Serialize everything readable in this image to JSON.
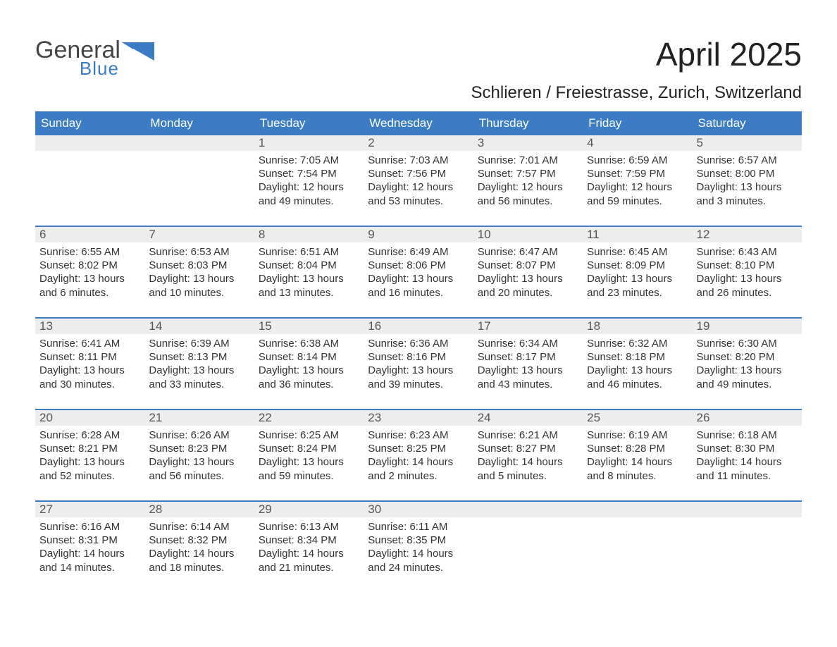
{
  "logo": {
    "line1": "General",
    "line2": "Blue",
    "shape_color": "#3c7cc4",
    "line1_color": "#444444",
    "line2_color": "#3c7cc4",
    "line1_fontsize": 34,
    "line2_fontsize": 26
  },
  "title": {
    "month": "April 2025",
    "location": "Schlieren / Freiestrasse, Zurich, Switzerland",
    "month_fontsize": 46,
    "location_fontsize": 24,
    "text_color": "#222222"
  },
  "calendar": {
    "header_bg": "#3c7cc4",
    "header_fg": "#ffffff",
    "daynum_bg": "#ededed",
    "row_border_color": "#3c7cc4",
    "body_text_color": "#333333",
    "columns": [
      "Sunday",
      "Monday",
      "Tuesday",
      "Wednesday",
      "Thursday",
      "Friday",
      "Saturday"
    ],
    "weeks": [
      [
        {
          "num": "",
          "sunrise": "",
          "sunset": "",
          "daylight1": "",
          "daylight2": ""
        },
        {
          "num": "",
          "sunrise": "",
          "sunset": "",
          "daylight1": "",
          "daylight2": ""
        },
        {
          "num": "1",
          "sunrise": "Sunrise: 7:05 AM",
          "sunset": "Sunset: 7:54 PM",
          "daylight1": "Daylight: 12 hours",
          "daylight2": "and 49 minutes."
        },
        {
          "num": "2",
          "sunrise": "Sunrise: 7:03 AM",
          "sunset": "Sunset: 7:56 PM",
          "daylight1": "Daylight: 12 hours",
          "daylight2": "and 53 minutes."
        },
        {
          "num": "3",
          "sunrise": "Sunrise: 7:01 AM",
          "sunset": "Sunset: 7:57 PM",
          "daylight1": "Daylight: 12 hours",
          "daylight2": "and 56 minutes."
        },
        {
          "num": "4",
          "sunrise": "Sunrise: 6:59 AM",
          "sunset": "Sunset: 7:59 PM",
          "daylight1": "Daylight: 12 hours",
          "daylight2": "and 59 minutes."
        },
        {
          "num": "5",
          "sunrise": "Sunrise: 6:57 AM",
          "sunset": "Sunset: 8:00 PM",
          "daylight1": "Daylight: 13 hours",
          "daylight2": "and 3 minutes."
        }
      ],
      [
        {
          "num": "6",
          "sunrise": "Sunrise: 6:55 AM",
          "sunset": "Sunset: 8:02 PM",
          "daylight1": "Daylight: 13 hours",
          "daylight2": "and 6 minutes."
        },
        {
          "num": "7",
          "sunrise": "Sunrise: 6:53 AM",
          "sunset": "Sunset: 8:03 PM",
          "daylight1": "Daylight: 13 hours",
          "daylight2": "and 10 minutes."
        },
        {
          "num": "8",
          "sunrise": "Sunrise: 6:51 AM",
          "sunset": "Sunset: 8:04 PM",
          "daylight1": "Daylight: 13 hours",
          "daylight2": "and 13 minutes."
        },
        {
          "num": "9",
          "sunrise": "Sunrise: 6:49 AM",
          "sunset": "Sunset: 8:06 PM",
          "daylight1": "Daylight: 13 hours",
          "daylight2": "and 16 minutes."
        },
        {
          "num": "10",
          "sunrise": "Sunrise: 6:47 AM",
          "sunset": "Sunset: 8:07 PM",
          "daylight1": "Daylight: 13 hours",
          "daylight2": "and 20 minutes."
        },
        {
          "num": "11",
          "sunrise": "Sunrise: 6:45 AM",
          "sunset": "Sunset: 8:09 PM",
          "daylight1": "Daylight: 13 hours",
          "daylight2": "and 23 minutes."
        },
        {
          "num": "12",
          "sunrise": "Sunrise: 6:43 AM",
          "sunset": "Sunset: 8:10 PM",
          "daylight1": "Daylight: 13 hours",
          "daylight2": "and 26 minutes."
        }
      ],
      [
        {
          "num": "13",
          "sunrise": "Sunrise: 6:41 AM",
          "sunset": "Sunset: 8:11 PM",
          "daylight1": "Daylight: 13 hours",
          "daylight2": "and 30 minutes."
        },
        {
          "num": "14",
          "sunrise": "Sunrise: 6:39 AM",
          "sunset": "Sunset: 8:13 PM",
          "daylight1": "Daylight: 13 hours",
          "daylight2": "and 33 minutes."
        },
        {
          "num": "15",
          "sunrise": "Sunrise: 6:38 AM",
          "sunset": "Sunset: 8:14 PM",
          "daylight1": "Daylight: 13 hours",
          "daylight2": "and 36 minutes."
        },
        {
          "num": "16",
          "sunrise": "Sunrise: 6:36 AM",
          "sunset": "Sunset: 8:16 PM",
          "daylight1": "Daylight: 13 hours",
          "daylight2": "and 39 minutes."
        },
        {
          "num": "17",
          "sunrise": "Sunrise: 6:34 AM",
          "sunset": "Sunset: 8:17 PM",
          "daylight1": "Daylight: 13 hours",
          "daylight2": "and 43 minutes."
        },
        {
          "num": "18",
          "sunrise": "Sunrise: 6:32 AM",
          "sunset": "Sunset: 8:18 PM",
          "daylight1": "Daylight: 13 hours",
          "daylight2": "and 46 minutes."
        },
        {
          "num": "19",
          "sunrise": "Sunrise: 6:30 AM",
          "sunset": "Sunset: 8:20 PM",
          "daylight1": "Daylight: 13 hours",
          "daylight2": "and 49 minutes."
        }
      ],
      [
        {
          "num": "20",
          "sunrise": "Sunrise: 6:28 AM",
          "sunset": "Sunset: 8:21 PM",
          "daylight1": "Daylight: 13 hours",
          "daylight2": "and 52 minutes."
        },
        {
          "num": "21",
          "sunrise": "Sunrise: 6:26 AM",
          "sunset": "Sunset: 8:23 PM",
          "daylight1": "Daylight: 13 hours",
          "daylight2": "and 56 minutes."
        },
        {
          "num": "22",
          "sunrise": "Sunrise: 6:25 AM",
          "sunset": "Sunset: 8:24 PM",
          "daylight1": "Daylight: 13 hours",
          "daylight2": "and 59 minutes."
        },
        {
          "num": "23",
          "sunrise": "Sunrise: 6:23 AM",
          "sunset": "Sunset: 8:25 PM",
          "daylight1": "Daylight: 14 hours",
          "daylight2": "and 2 minutes."
        },
        {
          "num": "24",
          "sunrise": "Sunrise: 6:21 AM",
          "sunset": "Sunset: 8:27 PM",
          "daylight1": "Daylight: 14 hours",
          "daylight2": "and 5 minutes."
        },
        {
          "num": "25",
          "sunrise": "Sunrise: 6:19 AM",
          "sunset": "Sunset: 8:28 PM",
          "daylight1": "Daylight: 14 hours",
          "daylight2": "and 8 minutes."
        },
        {
          "num": "26",
          "sunrise": "Sunrise: 6:18 AM",
          "sunset": "Sunset: 8:30 PM",
          "daylight1": "Daylight: 14 hours",
          "daylight2": "and 11 minutes."
        }
      ],
      [
        {
          "num": "27",
          "sunrise": "Sunrise: 6:16 AM",
          "sunset": "Sunset: 8:31 PM",
          "daylight1": "Daylight: 14 hours",
          "daylight2": "and 14 minutes."
        },
        {
          "num": "28",
          "sunrise": "Sunrise: 6:14 AM",
          "sunset": "Sunset: 8:32 PM",
          "daylight1": "Daylight: 14 hours",
          "daylight2": "and 18 minutes."
        },
        {
          "num": "29",
          "sunrise": "Sunrise: 6:13 AM",
          "sunset": "Sunset: 8:34 PM",
          "daylight1": "Daylight: 14 hours",
          "daylight2": "and 21 minutes."
        },
        {
          "num": "30",
          "sunrise": "Sunrise: 6:11 AM",
          "sunset": "Sunset: 8:35 PM",
          "daylight1": "Daylight: 14 hours",
          "daylight2": "and 24 minutes."
        },
        {
          "num": "",
          "sunrise": "",
          "sunset": "",
          "daylight1": "",
          "daylight2": ""
        },
        {
          "num": "",
          "sunrise": "",
          "sunset": "",
          "daylight1": "",
          "daylight2": ""
        },
        {
          "num": "",
          "sunrise": "",
          "sunset": "",
          "daylight1": "",
          "daylight2": ""
        }
      ]
    ]
  }
}
